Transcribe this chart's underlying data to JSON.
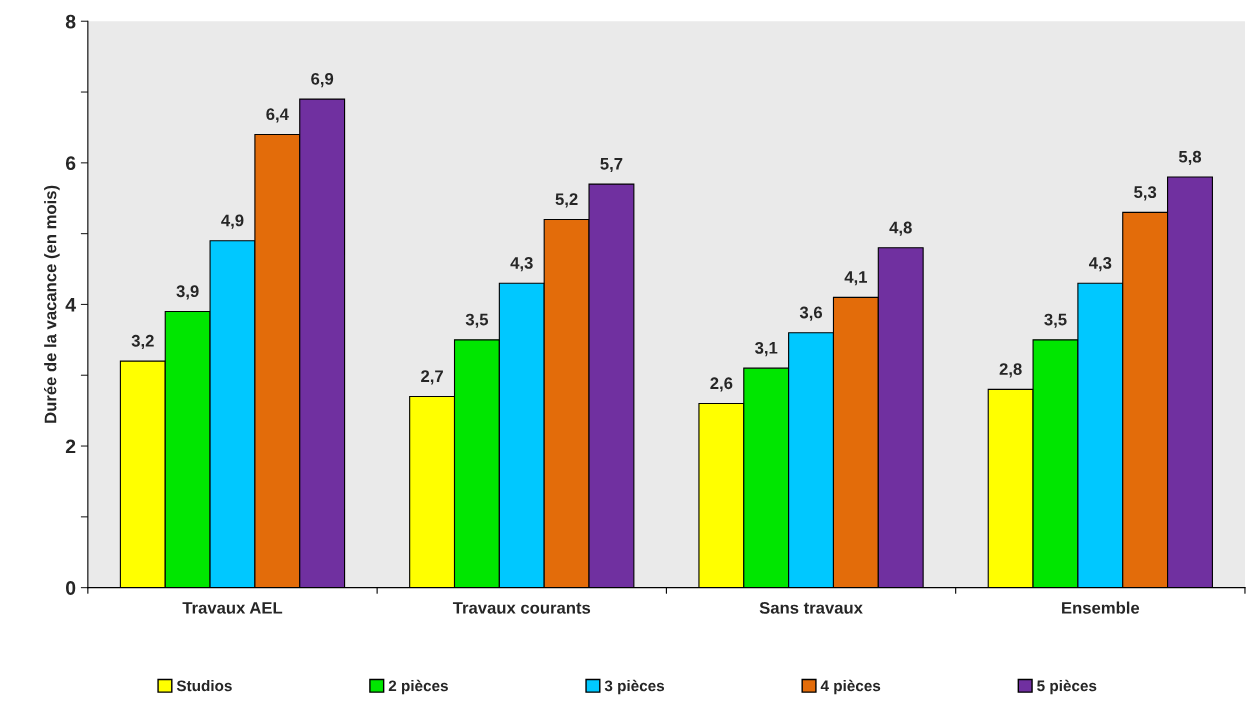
{
  "chart_data": {
    "type": "bar",
    "ylabel": "Durée de la vacance (en mois)",
    "categories": [
      "Travaux AEL",
      "Travaux courants",
      "Sans travaux",
      "Ensemble"
    ],
    "series": [
      {
        "name": "Studios",
        "color": "#ffff00",
        "values": [
          3.2,
          2.7,
          2.6,
          2.8
        ],
        "value_labels": [
          "3,2",
          "2,7",
          "2,6",
          "2,8"
        ]
      },
      {
        "name": "2 pièces",
        "color": "#00e600",
        "values": [
          3.9,
          3.5,
          3.1,
          3.5
        ],
        "value_labels": [
          "3,9",
          "3,5",
          "3,1",
          "3,5"
        ]
      },
      {
        "name": "3 pièces",
        "color": "#00c8ff",
        "values": [
          4.9,
          4.3,
          3.6,
          4.3
        ],
        "value_labels": [
          "4,9",
          "4,3",
          "3,6",
          "4,3"
        ]
      },
      {
        "name": "4 pièces",
        "color": "#e36c0a",
        "values": [
          6.4,
          5.2,
          4.1,
          5.3
        ],
        "value_labels": [
          "6,4",
          "5,2",
          "4,1",
          "5,3"
        ]
      },
      {
        "name": "5 pièces",
        "color": "#7030a0",
        "values": [
          6.9,
          5.7,
          4.8,
          5.8
        ],
        "value_labels": [
          "6,9",
          "5,7",
          "4,8",
          "5,8"
        ]
      }
    ],
    "ylim": [
      0,
      8
    ],
    "yticks": [
      0,
      {
        "value": 1,
        "label": null
      },
      2,
      {
        "value": 3,
        "label": null
      },
      4,
      {
        "value": 5,
        "label": null
      },
      6,
      {
        "value": 7,
        "label": null
      },
      8
    ],
    "grid": false,
    "legend": "bottom"
  }
}
